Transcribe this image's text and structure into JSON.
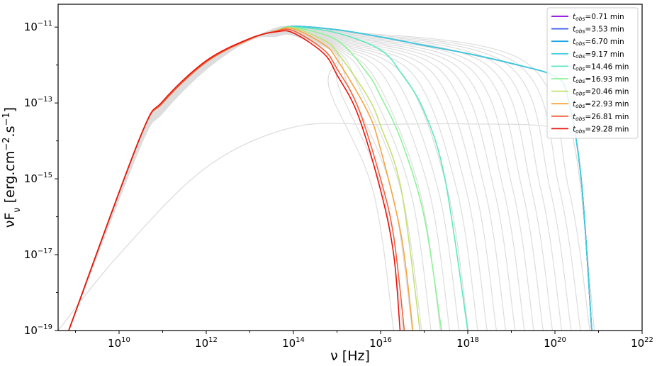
{
  "chart_data": {
    "type": "line",
    "xlabel": "ν [Hz]",
    "ylabel": "νFν [erg.cm−2.s−1]",
    "x_scale": "log",
    "y_scale": "log",
    "xlim": [
      400000000.0,
      1e+22
    ],
    "ylim": [
      1e-19,
      4e-11
    ],
    "x_ticks": [
      {
        "value": 10000000000.0,
        "base": "10",
        "exp": "10"
      },
      {
        "value": 1000000000000.0,
        "base": "10",
        "exp": "12"
      },
      {
        "value": 100000000000000.0,
        "base": "10",
        "exp": "14"
      },
      {
        "value": 1e+16,
        "base": "10",
        "exp": "16"
      },
      {
        "value": 1e+18,
        "base": "10",
        "exp": "18"
      },
      {
        "value": 1e+20,
        "base": "10",
        "exp": "20"
      },
      {
        "value": 1e+22,
        "base": "10",
        "exp": "22"
      }
    ],
    "y_ticks": [
      {
        "value": 1e-11,
        "base": "10",
        "exp": "−11"
      },
      {
        "value": 1e-13,
        "base": "10",
        "exp": "−13"
      },
      {
        "value": 1e-15,
        "base": "10",
        "exp": "−15"
      },
      {
        "value": 1e-17,
        "base": "10",
        "exp": "−17"
      },
      {
        "value": 1e-19,
        "base": "10",
        "exp": "−19"
      }
    ],
    "grid": false,
    "legend_position": "top-right",
    "background_curves": {
      "color": "#dddddd",
      "count": 22,
      "description_peak_range": [
        6e-12,
        1e-11
      ]
    },
    "broad_background_curve": {
      "color": "#dddddd",
      "x": [
        400000000.0,
        10000000000.0,
        1000000000000.0,
        100000000000000.0,
        1e+16,
        1e+18,
        1e+20,
        3e+20,
        8e+20
      ],
      "y": [
        1e-19,
        1e-17,
        2e-15,
        2.3e-14,
        2.7e-14,
        2.8e-14,
        2.2e-14,
        5e-15,
        1e-19
      ]
    },
    "series": [
      {
        "label": "=0.71 min",
        "color": "#8b00e0",
        "x": [
          700000000.0,
          30000000000.0,
          100000000000.0,
          1000000000000.0,
          10000000000000.0,
          40000000000000.0,
          100000000000000.0,
          1000000000000000.0,
          1e+16,
          1e+17,
          1e+18,
          1e+19,
          1e+20,
          2e+20,
          4e+20,
          7e+20
        ],
        "y": [
          1e-19,
          1.2e-14,
          1e-13,
          1.2e-12,
          4.8e-12,
          8e-12,
          1.05e-11,
          8.5e-12,
          5.5e-12,
          3.3e-12,
          2e-12,
          1.1e-12,
          5e-13,
          1.3e-13,
          1e-15,
          1e-19
        ]
      },
      {
        "label": "=3.53 min",
        "color": "#3a5cf5",
        "x": [
          700000000.0,
          30000000000.0,
          100000000000.0,
          1000000000000.0,
          10000000000000.0,
          40000000000000.0,
          100000000000000.0,
          1000000000000000.0,
          1e+16,
          1e+17,
          1e+18,
          1e+19,
          1e+20,
          2e+20,
          4e+20,
          7e+20
        ],
        "y": [
          1e-19,
          1.2e-14,
          1e-13,
          1.2e-12,
          4.8e-12,
          8e-12,
          1.05e-11,
          8.5e-12,
          5.5e-12,
          3.3e-12,
          2e-12,
          1.1e-12,
          5e-13,
          1.3e-13,
          1e-15,
          1e-19
        ]
      },
      {
        "label": "=6.70 min",
        "color": "#1aa5e6",
        "x": [
          700000000.0,
          30000000000.0,
          100000000000.0,
          1000000000000.0,
          10000000000000.0,
          40000000000000.0,
          100000000000000.0,
          1000000000000000.0,
          1e+16,
          1e+17,
          1e+18,
          1e+19,
          1e+20,
          2e+20,
          4e+20,
          7e+20
        ],
        "y": [
          1e-19,
          1.2e-14,
          1e-13,
          1.2e-12,
          4.8e-12,
          8e-12,
          1.05e-11,
          8.5e-12,
          5.5e-12,
          3.3e-12,
          2e-12,
          1.1e-12,
          5e-13,
          1.3e-13,
          1e-15,
          1e-19
        ]
      },
      {
        "label": "=9.17 min",
        "color": "#3fd0d8",
        "x": [
          700000000.0,
          30000000000.0,
          100000000000.0,
          1000000000000.0,
          10000000000000.0,
          40000000000000.0,
          100000000000000.0,
          1000000000000000.0,
          1e+16,
          1e+17,
          1e+18,
          1e+19,
          1e+20,
          2e+20,
          4e+20,
          7e+20
        ],
        "y": [
          1e-19,
          1.2e-14,
          1e-13,
          1.2e-12,
          4.8e-12,
          8e-12,
          1.05e-11,
          8.5e-12,
          5.5e-12,
          3.3e-12,
          2e-12,
          1.1e-12,
          5e-13,
          1.3e-13,
          1e-15,
          1e-19
        ]
      },
      {
        "label": "=14.46 min",
        "color": "#5ee8c0",
        "x": [
          700000000.0,
          30000000000.0,
          100000000000.0,
          1000000000000.0,
          10000000000000.0,
          40000000000000.0,
          100000000000000.0,
          1000000000000000.0,
          1e+16,
          3e+16,
          1e+17,
          3e+17,
          1e+18
        ],
        "y": [
          1e-19,
          1.2e-14,
          1e-13,
          1.2e-12,
          4.8e-12,
          8e-12,
          1e-11,
          7e-12,
          2.5e-12,
          6e-13,
          6e-14,
          1e-15,
          1e-19
        ]
      },
      {
        "label": "=16.93 min",
        "color": "#8ef29a",
        "x": [
          700000000.0,
          30000000000.0,
          100000000000.0,
          1000000000000.0,
          10000000000000.0,
          40000000000000.0,
          100000000000000.0,
          1000000000000000.0,
          5000000000000000.0,
          1e+16,
          3e+16,
          1e+17,
          2.5e+17
        ],
        "y": [
          1e-19,
          1.2e-14,
          1e-13,
          1.2e-12,
          4.8e-12,
          8e-12,
          9.8e-12,
          4.5e-12,
          6e-13,
          1.5e-13,
          1e-14,
          1e-16,
          1e-19
        ]
      },
      {
        "label": "=20.46 min",
        "color": "#c4e070",
        "x": [
          700000000.0,
          30000000000.0,
          100000000000.0,
          1000000000000.0,
          10000000000000.0,
          40000000000000.0,
          100000000000000.0,
          500000000000000.0,
          1000000000000000.0,
          5000000000000000.0,
          1e+16,
          3e+16,
          8e+16
        ],
        "y": [
          1e-19,
          1.2e-14,
          1e-13,
          1.2e-12,
          4.8e-12,
          8e-12,
          9.5e-12,
          4.5e-12,
          2.2e-12,
          1.5e-13,
          2.5e-14,
          5e-16,
          1e-19
        ]
      },
      {
        "label": "=22.93 min",
        "color": "#f7a540",
        "x": [
          700000000.0,
          30000000000.0,
          100000000000.0,
          1000000000000.0,
          10000000000000.0,
          40000000000000.0,
          100000000000000.0,
          500000000000000.0,
          1000000000000000.0,
          5000000000000000.0,
          1e+16,
          3e+16,
          5.5e+16
        ],
        "y": [
          1e-19,
          1.2e-14,
          1e-13,
          1.2e-12,
          4.8e-12,
          8e-12,
          9e-12,
          3.5e-12,
          1.4e-12,
          6e-14,
          6e-15,
          3e-17,
          1e-19
        ]
      },
      {
        "label": "=26.81 min",
        "color": "#f2603a",
        "x": [
          700000000.0,
          30000000000.0,
          100000000000.0,
          1000000000000.0,
          10000000000000.0,
          40000000000000.0,
          100000000000000.0,
          500000000000000.0,
          1000000000000000.0,
          3000000000000000.0,
          1e+16,
          2e+16,
          3.5e+16
        ],
        "y": [
          1e-19,
          1.2e-14,
          1e-13,
          1.2e-12,
          4.8e-12,
          7.8e-12,
          8e-12,
          2.5e-12,
          8e-13,
          8e-14,
          1e-15,
          3e-17,
          1e-19
        ]
      },
      {
        "label": "=29.28 min",
        "color": "#e8140c",
        "x": [
          700000000.0,
          30000000000.0,
          100000000000.0,
          1000000000000.0,
          10000000000000.0,
          40000000000000.0,
          100000000000000.0,
          500000000000000.0,
          1000000000000000.0,
          3000000000000000.0,
          1e+16,
          2e+16,
          2.8e+16
        ],
        "y": [
          1e-19,
          1.2e-14,
          1.1e-13,
          1.3e-12,
          5e-12,
          7.5e-12,
          7e-12,
          2e-12,
          5.5e-13,
          5e-14,
          5e-16,
          1e-17,
          1e-19
        ]
      }
    ],
    "legend_prefix": {
      "t": "t",
      "sub": "obs"
    }
  }
}
